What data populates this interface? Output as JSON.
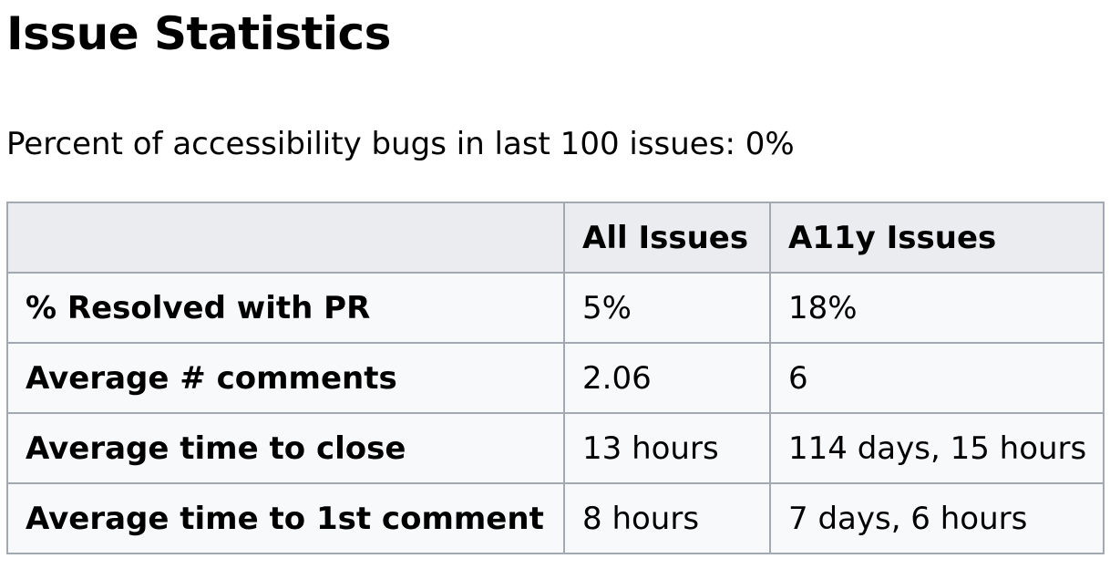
{
  "heading": "Issue Statistics",
  "summary": "Percent of accessibility bugs in last 100 issues: 0%",
  "table": {
    "headers": [
      "",
      "All Issues",
      "A11y Issues"
    ],
    "rows": [
      {
        "label": "% Resolved with PR",
        "all": "5%",
        "a11y": "18%"
      },
      {
        "label": "Average # comments",
        "all": "2.06",
        "a11y": "6"
      },
      {
        "label": "Average time to close",
        "all": "13 hours",
        "a11y": "114 days, 15 hours"
      },
      {
        "label": "Average time to 1st comment",
        "all": "8 hours",
        "a11y": "7 days, 6 hours"
      }
    ]
  }
}
